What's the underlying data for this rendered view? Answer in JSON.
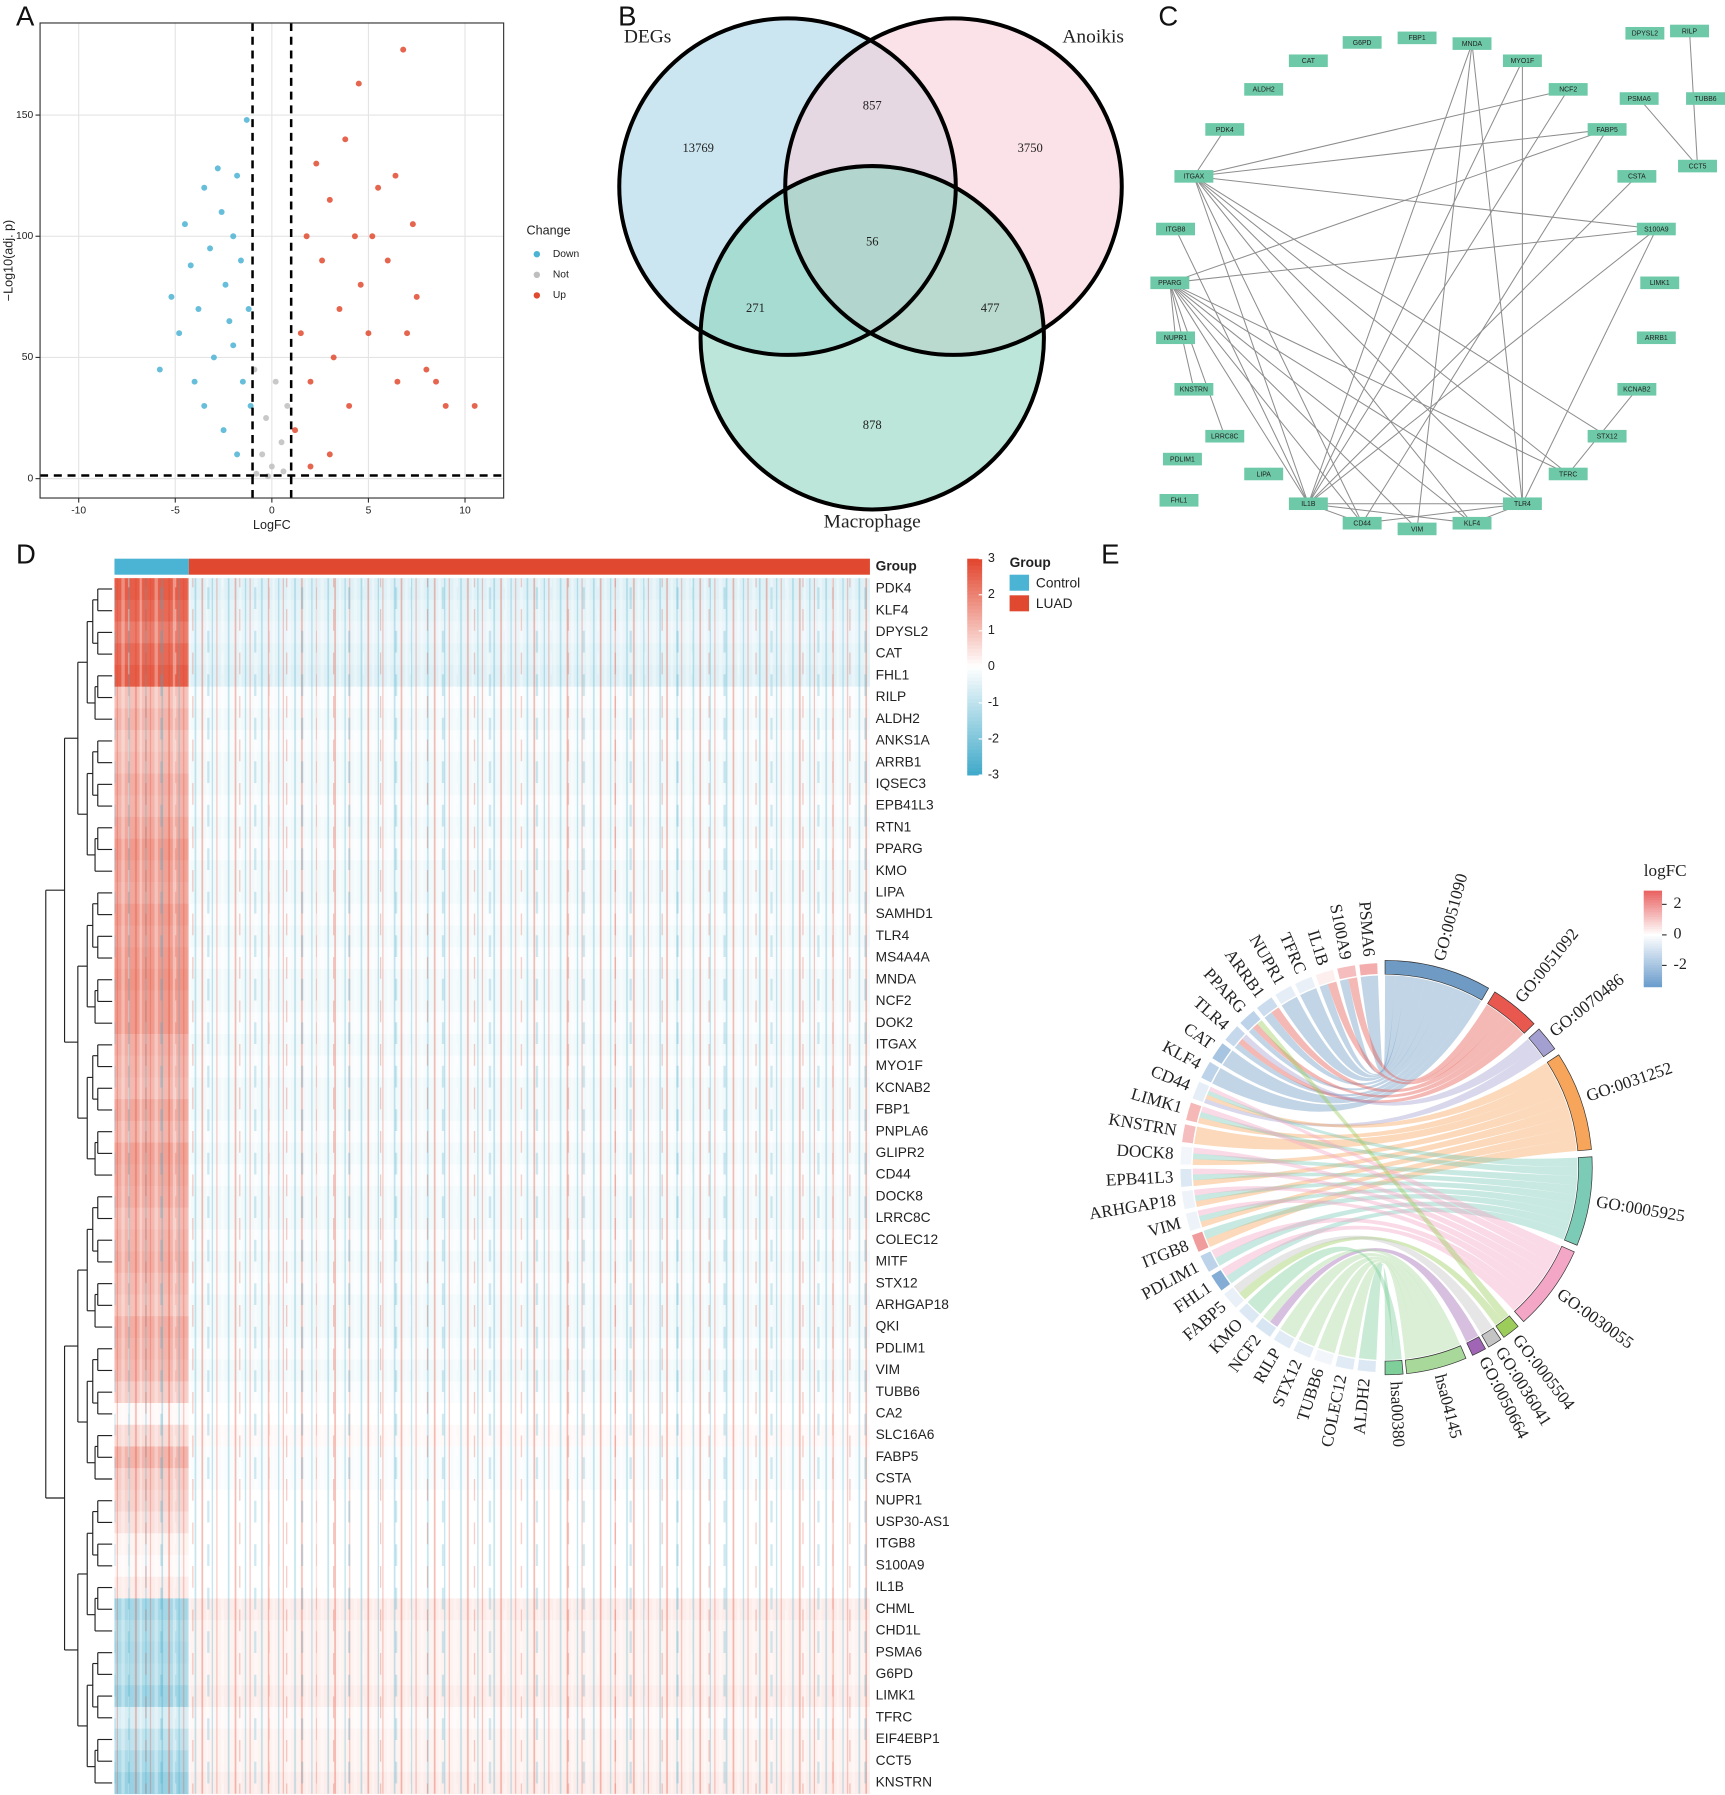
{
  "chart_data": [
    {
      "type": "scatter",
      "label": "A",
      "xlabel": "LogFC",
      "ylabel": "−Log10(adj. p)",
      "xlim": [
        -12,
        12
      ],
      "ylim": [
        -8,
        188
      ],
      "xticks": [
        -10,
        -5,
        0,
        5,
        10
      ],
      "yticks": [
        0,
        50,
        100,
        150
      ],
      "grid": true,
      "legend_title": "Change",
      "legend_position": "right",
      "thresholds_x": [
        -1,
        1
      ],
      "threshold_y": 1.3,
      "series": [
        {
          "name": "Down",
          "color": "#4bb3d3",
          "x": [
            -5.8,
            -5.2,
            -4.8,
            -4.5,
            -4.2,
            -3.8,
            -3.5,
            -3.2,
            -3,
            -2.8,
            -2.6,
            -2.4,
            -2.2,
            -2,
            -1.8,
            -1.6,
            -1.5,
            -1.3,
            -1.2,
            -1.1,
            -3.5,
            -2.5,
            -1.8,
            -4,
            -2
          ],
          "y": [
            45,
            75,
            60,
            105,
            88,
            70,
            120,
            95,
            50,
            128,
            110,
            80,
            65,
            100,
            125,
            90,
            40,
            148,
            70,
            30,
            30,
            20,
            10,
            40,
            55
          ]
        },
        {
          "name": "Not",
          "color": "#bebebe",
          "x": [
            -0.8,
            -0.5,
            -0.3,
            0,
            0.2,
            0.5,
            0.8,
            -0.9,
            0.6,
            -0.2
          ],
          "y": [
            2,
            10,
            25,
            5,
            40,
            15,
            30,
            45,
            3,
            1
          ]
        },
        {
          "name": "Up",
          "color": "#e04a2f",
          "x": [
            1.2,
            1.5,
            1.8,
            2,
            2.3,
            2.6,
            3,
            3.2,
            3.5,
            3.8,
            4,
            4.3,
            4.6,
            5,
            5.5,
            6,
            6.4,
            6.8,
            4.5,
            7,
            7.5,
            8,
            8.5,
            9,
            10.5,
            3,
            2,
            5.2,
            6.5,
            7.3
          ],
          "y": [
            20,
            60,
            100,
            40,
            130,
            90,
            115,
            50,
            70,
            140,
            30,
            100,
            80,
            60,
            120,
            90,
            125,
            177,
            163,
            60,
            75,
            45,
            40,
            30,
            30,
            10,
            5,
            100,
            40,
            105
          ]
        }
      ]
    },
    {
      "type": "venn",
      "label": "B",
      "sets": [
        {
          "name": "DEGs",
          "color": "#a9d6e8",
          "text_color": "#6bbfdf"
        },
        {
          "name": "Anoikis",
          "color": "#f7cfd9",
          "text_color": "#f0a0b3"
        },
        {
          "name": "Macrophage",
          "color": "#8fd6bf",
          "text_color": "#5fc3a3"
        }
      ],
      "values": [
        13769,
        857,
        3750,
        56,
        271,
        477,
        878
      ]
    },
    {
      "type": "network",
      "label": "C",
      "color": "#6dc9a8",
      "nodes": [
        "G6PD",
        "FBP1",
        "MNDA",
        "MYO1F",
        "CAT",
        "ALDH2",
        "NCF2",
        "PDK4",
        "FABP5",
        "ITGAX",
        "CSTA",
        "ITGB8",
        "S100A9",
        "PPARG",
        "LIMK1",
        "NUPR1",
        "ARRB1",
        "KNSTRN",
        "KCNAB2",
        "LRRC8C",
        "STX12",
        "PDLIM1",
        "LIPA",
        "TFRC",
        "FHL1",
        "IL1B",
        "TLR4",
        "CD44",
        "KLF4",
        "VIM",
        "DPYSL2",
        "RILP",
        "PSMA6",
        "TUBB6",
        "CCT5"
      ]
    },
    {
      "type": "heatmap",
      "label": "D",
      "group_label": "Group",
      "legend_title": "Group",
      "rows": [
        "PDK4",
        "KLF4",
        "DPYSL2",
        "CAT",
        "FHL1",
        "RILP",
        "ALDH2",
        "ANKS1A",
        "ARRB1",
        "IQSEC3",
        "EPB41L3",
        "RTN1",
        "PPARG",
        "KMO",
        "LIPA",
        "SAMHD1",
        "TLR4",
        "MS4A4A",
        "MNDA",
        "NCF2",
        "DOK2",
        "ITGAX",
        "MYO1F",
        "KCNAB2",
        "FBP1",
        "PNPLA6",
        "GLIPR2",
        "CD44",
        "DOCK8",
        "LRRC8C",
        "COLEC12",
        "MITF",
        "STX12",
        "ARHGAP18",
        "QKI",
        "PDLIM1",
        "VIM",
        "TUBB6",
        "CA2",
        "SLC16A6",
        "FABP5",
        "CSTA",
        "NUPR1",
        "USP30-AS1",
        "ITGB8",
        "S100A9",
        "IL1B",
        "CHML",
        "CHD1L",
        "PSMA6",
        "G6PD",
        "LIMK1",
        "TFRC",
        "EIF4EBP1",
        "CCT5",
        "KNSTRN"
      ],
      "groups": [
        {
          "name": "Control",
          "color": "#4bb3d3",
          "values": [
            2.6,
            2.4,
            2.1,
            2.4,
            2.6,
            1.0,
            1.2,
            1.0,
            1.1,
            1.3,
            1.2,
            1.4,
            1.6,
            1.5,
            1.4,
            1.6,
            1.5,
            1.6,
            1.7,
            1.6,
            1.6,
            1.3,
            1.2,
            1.1,
            1.4,
            1.2,
            1.5,
            1.4,
            1.3,
            1.1,
            1.2,
            1.3,
            1.1,
            1.0,
            1.3,
            1.2,
            1.1,
            0.8,
            0.1,
            0.6,
            1.2,
            0.8,
            0.7,
            0.5,
            0.2,
            0.1,
            0.3,
            -1.4,
            -1.2,
            -1.3,
            -1.2,
            -1.5,
            -0.6,
            -1.0,
            -1.3,
            -1.6
          ]
        },
        {
          "name": "LUAD",
          "color": "#e0492f",
          "values": [
            -0.5,
            -0.4,
            -0.3,
            -0.4,
            -0.5,
            -0.1,
            -0.2,
            -0.1,
            -0.2,
            -0.2,
            -0.1,
            -0.2,
            -0.1,
            -0.2,
            -0.2,
            -0.1,
            -0.2,
            -0.1,
            -0.2,
            -0.2,
            -0.1,
            -0.2,
            -0.1,
            -0.2,
            -0.2,
            -0.1,
            -0.2,
            -0.1,
            -0.2,
            -0.2,
            -0.1,
            -0.2,
            -0.1,
            -0.2,
            -0.2,
            -0.1,
            -0.2,
            -0.1,
            0,
            0.1,
            -0.1,
            -0.1,
            0,
            0,
            0,
            0,
            0,
            0.3,
            0.2,
            0.2,
            0.2,
            0.3,
            0.1,
            0.2,
            0.2,
            0.3
          ]
        }
      ],
      "colorbar_lim": [
        -3,
        3
      ],
      "colorbar_ticks": [
        3,
        2,
        1,
        0,
        -1,
        -2,
        -3
      ],
      "colors": [
        "#3fa9c9",
        "#ffffff",
        "#e2442c"
      ]
    },
    {
      "type": "chord",
      "label": "E",
      "legend_title": "logFC",
      "colorbar_lim": [
        -3.4,
        2.9
      ],
      "colorbar_ticks": [
        2,
        0,
        -2
      ],
      "colors": [
        "#6a9ccc",
        "#ffffff",
        "#e8605f"
      ],
      "genes": [
        "PSMA6",
        "S100A9",
        "IL1B",
        "TFRC",
        "NUPR1",
        "ARRB1",
        "PPARG",
        "TLR4",
        "CAT",
        "KLF4",
        "CD44",
        "LIMK1",
        "KNSTRN",
        "DOCK8",
        "EPB41L3",
        "ARHGAP18",
        "VIM",
        "ITGB8",
        "PDLIM1",
        "FHL1",
        "FABP5",
        "KMO",
        "NCF2",
        "RILP",
        "STX12",
        "TUBB6",
        "COLEC12",
        "ALDH2"
      ],
      "logFC": [
        1.5,
        1.2,
        0.3,
        -0.5,
        -0.6,
        -1.2,
        -1.5,
        -1.3,
        -2,
        -1.5,
        -0.6,
        1.3,
        1.2,
        -0.3,
        -0.8,
        -0.4,
        -0.4,
        1.8,
        -1.5,
        -2.8,
        -0.5,
        -0.8,
        -0.9,
        -0.7,
        -0.6,
        -0.3,
        -0.7,
        -0.8
      ],
      "terms": [
        {
          "name": "GO:0051090",
          "color": "#6e9ac4"
        },
        {
          "name": "GO:0051092",
          "color": "#e8584f"
        },
        {
          "name": "GO:0070486",
          "color": "#a39fd0"
        },
        {
          "name": "GO:0031252",
          "color": "#f6a55a"
        },
        {
          "name": "GO:0005925",
          "color": "#7ccbb7"
        },
        {
          "name": "GO:0030055",
          "color": "#f4a6c6"
        },
        {
          "name": "GO:0005504",
          "color": "#9ccc5a"
        },
        {
          "name": "GO:0036041",
          "color": "#c4c4c4"
        },
        {
          "name": "GO:0050664",
          "color": "#a066b5"
        },
        {
          "name": "hsa04145",
          "color": "#a8d89a"
        },
        {
          "name": "hsa00380",
          "color": "#7fcf9a"
        }
      ]
    }
  ]
}
